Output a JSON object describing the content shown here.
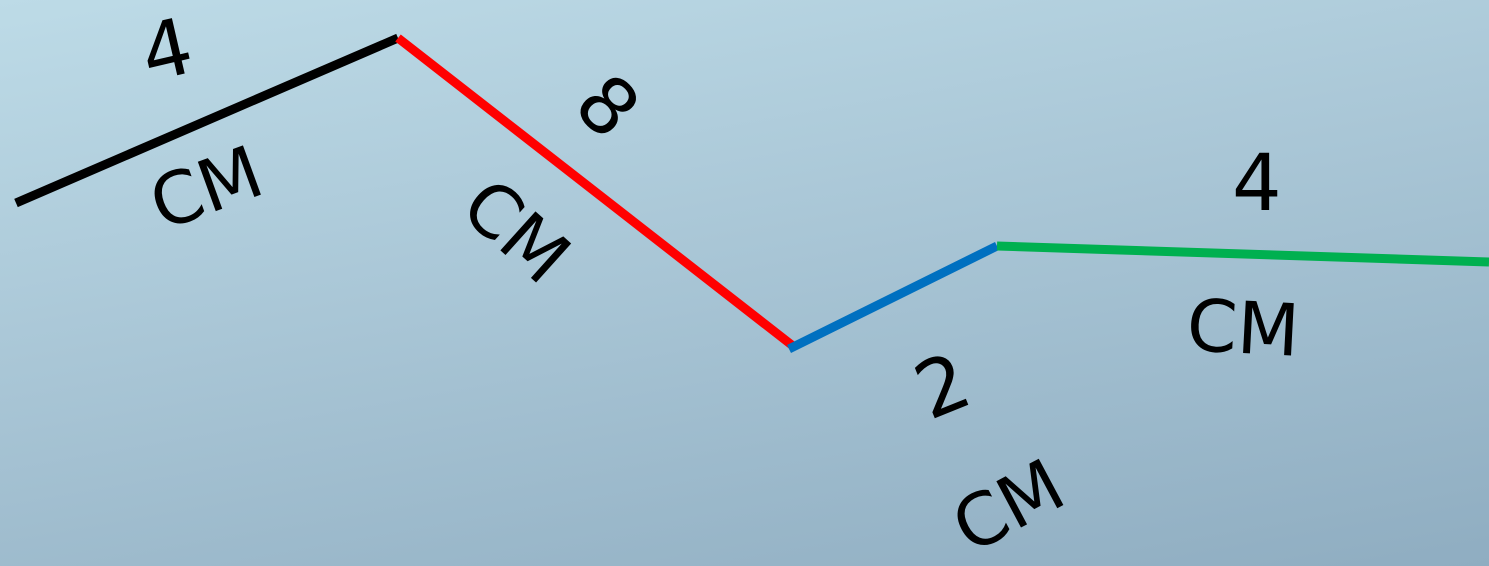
{
  "segments": [
    {
      "value": "4",
      "unit": "CM",
      "color": "#000000"
    },
    {
      "value": "8",
      "unit": "CM",
      "color": "#ff0000"
    },
    {
      "value": "2",
      "unit": "CM",
      "color": "#0070c0"
    },
    {
      "value": "4",
      "unit": "CM",
      "color": "#00b050"
    }
  ]
}
